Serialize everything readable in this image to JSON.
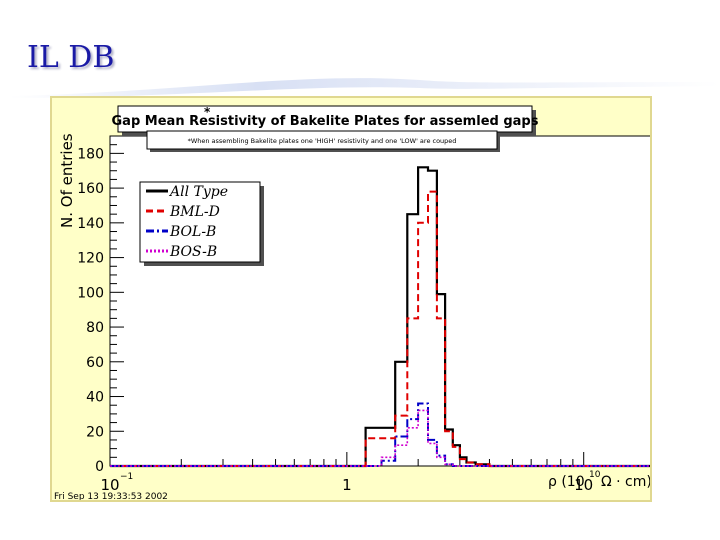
{
  "slide": {
    "title": "IL DB"
  },
  "chart_data": {
    "type": "histogram",
    "title": "Gap Mean Resistivity of Bakelite Plates for assemled gaps",
    "title_marker": "*",
    "note": "*When assembling Bakelite plates one 'HIGH' resistivity and one 'LOW' are couped",
    "ylabel": "N. Of entries",
    "xlabel": "ρ (10",
    "xlabel_exp": "10",
    "xlabel_tail": "Ω · cm)",
    "xscale": "log",
    "xlim": [
      0.1,
      20
    ],
    "ylim": [
      0,
      190
    ],
    "y_ticks": [
      "0",
      "20",
      "40",
      "60",
      "80",
      "100",
      "120",
      "140",
      "160",
      "180"
    ],
    "x_ticks": [
      {
        "label": "10",
        "sup": "−1",
        "value": 0.1
      },
      {
        "label": "1",
        "sup": "",
        "value": 1
      },
      {
        "label": "10",
        "sup": "",
        "value": 10
      }
    ],
    "timestamp": "Fri Sep 13 19:33:53 2002",
    "grid": false,
    "legend_position": "top-left",
    "bin_edges": [
      0.1,
      0.2,
      0.3,
      0.4,
      0.5,
      0.6,
      0.7,
      0.8,
      0.9,
      1.0,
      1.2,
      1.4,
      1.6,
      1.8,
      2.0,
      2.2,
      2.4,
      2.6,
      2.8,
      3.0,
      3.2,
      3.5,
      4.0,
      4.5,
      5.0,
      6.0,
      7.0,
      8.0,
      9.0,
      10.0,
      12.0,
      15.0,
      20.0
    ],
    "series": [
      {
        "name": "All Type",
        "color": "#000000",
        "dash": "solid",
        "counts": [
          0,
          0,
          0,
          0,
          0,
          0,
          0,
          0,
          0,
          0,
          22,
          22,
          60,
          145,
          172,
          170,
          99,
          21,
          12,
          5,
          2,
          1,
          0,
          0,
          0,
          0,
          0,
          0,
          0,
          0,
          0,
          0
        ]
      },
      {
        "name": "BML-D",
        "color": "#e00000",
        "dash": "dashed",
        "counts": [
          0,
          0,
          0,
          0,
          0,
          0,
          0,
          0,
          0,
          0,
          16,
          16,
          29,
          85,
          140,
          158,
          85,
          20,
          11,
          4,
          2,
          1,
          0,
          0,
          0,
          0,
          0,
          0,
          0,
          0,
          0,
          0
        ]
      },
      {
        "name": "BOL-B",
        "color": "#0000c8",
        "dash": "dashdot",
        "counts": [
          0,
          0,
          0,
          0,
          0,
          0,
          0,
          0,
          0,
          0,
          0,
          3,
          17,
          27,
          36,
          15,
          6,
          1,
          0,
          0,
          0,
          0,
          0,
          0,
          0,
          0,
          0,
          0,
          0,
          0,
          0,
          0
        ]
      },
      {
        "name": "BOS-B",
        "color": "#d000d0",
        "dash": "dotted",
        "counts": [
          0,
          0,
          0,
          0,
          0,
          0,
          0,
          0,
          0,
          0,
          0,
          5,
          12,
          22,
          32,
          13,
          5,
          1,
          0,
          0,
          0,
          0,
          0,
          0,
          0,
          0,
          0,
          0,
          0,
          0,
          0,
          0
        ]
      }
    ]
  }
}
